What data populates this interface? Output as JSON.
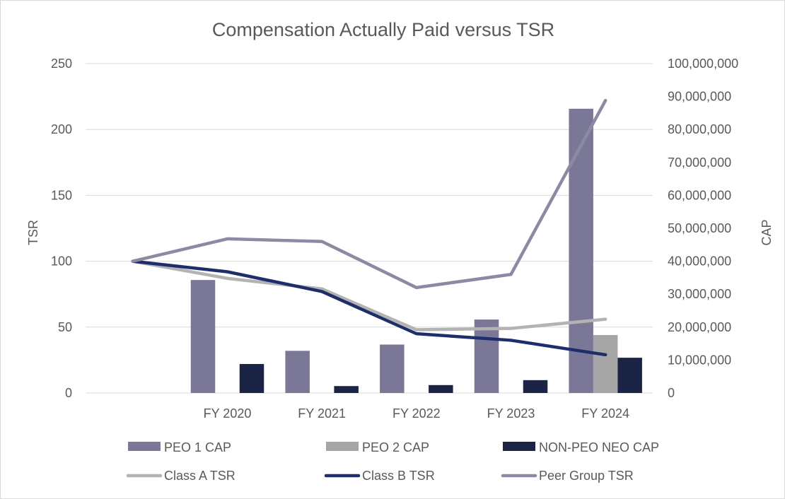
{
  "chart_data": {
    "type": "bar",
    "title": "Compensation Actually Paid versus TSR",
    "categories": [
      "",
      "FY 2020",
      "FY 2021",
      "FY 2022",
      "FY 2023",
      "FY 2024"
    ],
    "left_axis": {
      "label": "TSR",
      "range": [
        0,
        250
      ],
      "ticks": [
        "0",
        "50",
        "100",
        "150",
        "200",
        "250"
      ]
    },
    "right_axis": {
      "label": "CAP",
      "range": [
        0,
        100000000
      ],
      "ticks": [
        "0",
        "10,000,000",
        "20,000,000",
        "30,000,000",
        "40,000,000",
        "50,000,000",
        "60,000,000",
        "70,000,000",
        "80,000,000",
        "90,000,000",
        "100,000,000"
      ]
    },
    "bar_series": [
      {
        "name": "PEO 1 CAP",
        "color": "#7a7896",
        "values": [
          null,
          34300000,
          12800000,
          14700000,
          22300000,
          86300000
        ]
      },
      {
        "name": "PEO 2 CAP",
        "color": "#a6a6a6",
        "values": [
          null,
          null,
          null,
          null,
          null,
          17600000
        ]
      },
      {
        "name": "NON-PEO NEO CAP",
        "color": "#1c2446",
        "values": [
          null,
          8800000,
          2100000,
          2400000,
          3900000,
          10700000
        ]
      }
    ],
    "line_series": [
      {
        "name": "Class A TSR",
        "color": "#b3b3b3",
        "values": [
          100,
          87,
          79,
          48,
          49,
          56
        ]
      },
      {
        "name": "Class B TSR",
        "color": "#1f2e6b",
        "values": [
          100,
          92,
          77,
          45,
          40,
          29
        ]
      },
      {
        "name": "Peer Group TSR",
        "color": "#8c8aa3",
        "values": [
          100,
          117,
          115,
          80,
          90,
          222
        ]
      }
    ],
    "grid": true,
    "legend_position": "bottom"
  }
}
